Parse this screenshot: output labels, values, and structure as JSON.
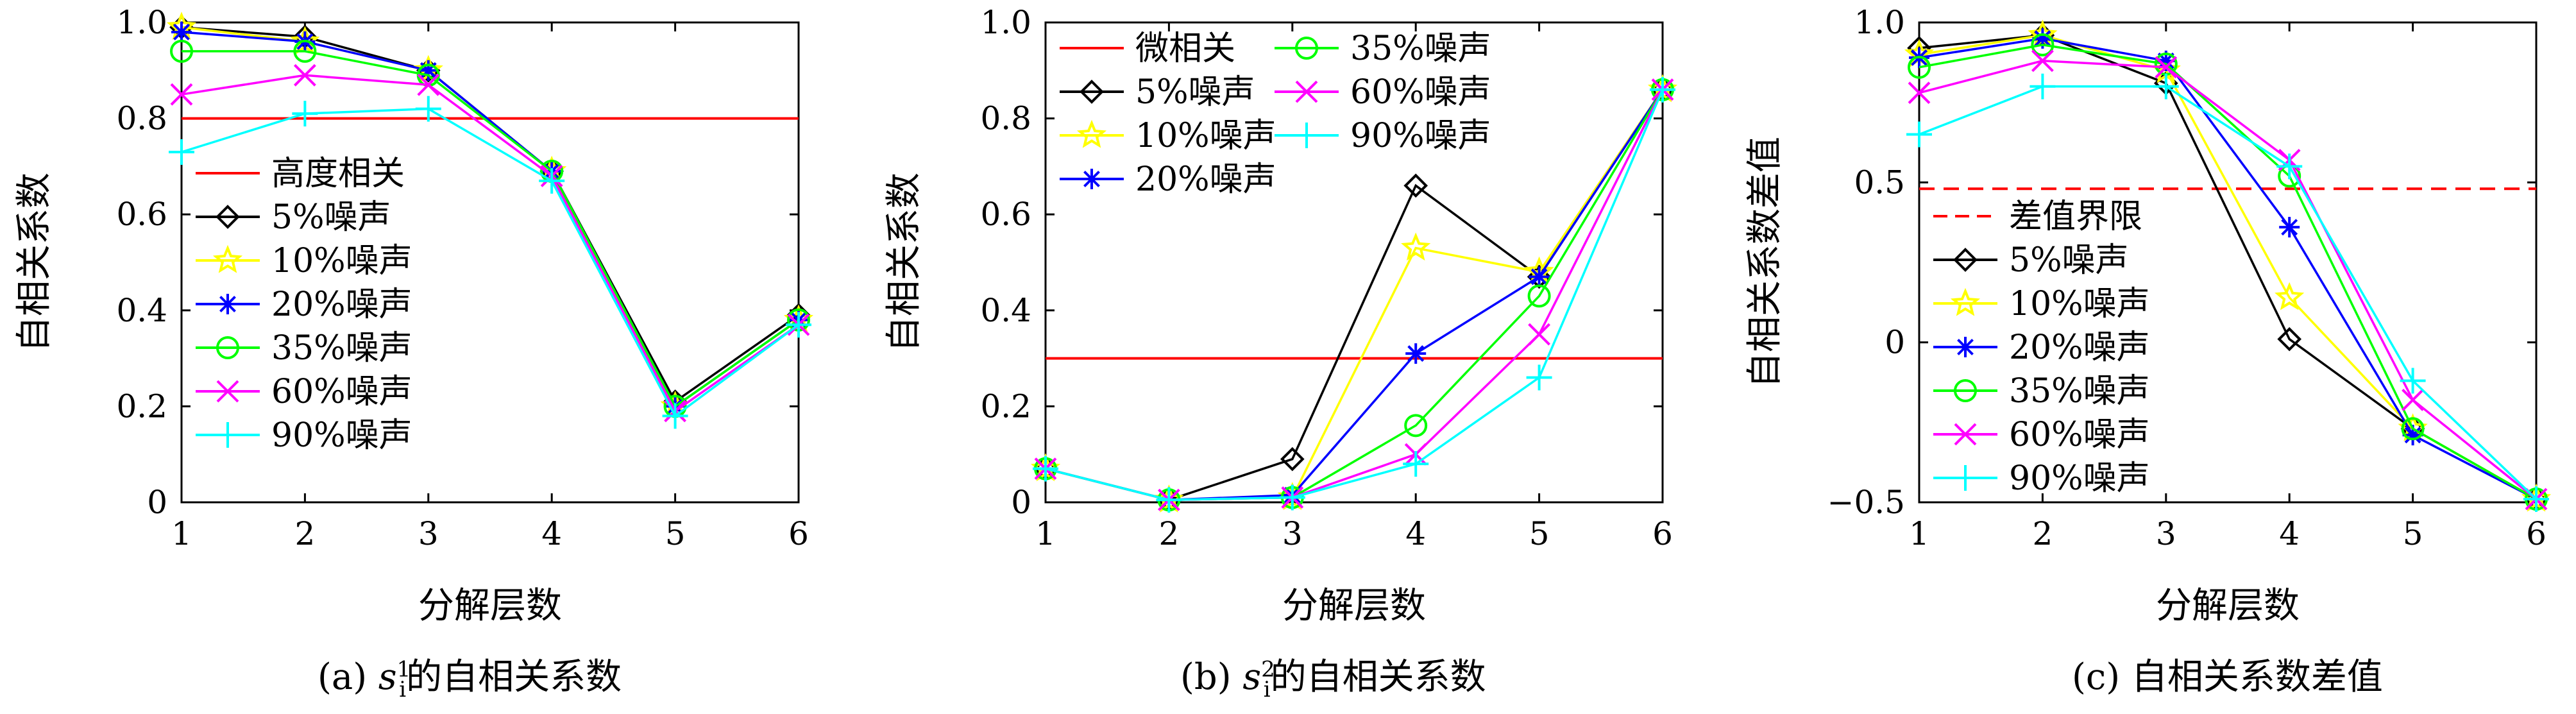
{
  "figure": {
    "captions": [
      {
        "prefix": "(a) ",
        "var": "s",
        "sub": "i",
        "sup": "1",
        "suffix": "的自相关系数"
      },
      {
        "prefix": "(b) ",
        "var": "s",
        "sub": "i",
        "sup": "2",
        "suffix": "的自相关系数"
      },
      {
        "text": "(c) 自相关系数差值"
      }
    ]
  },
  "chart_data": [
    {
      "type": "line",
      "title": "",
      "xlabel": "分解层数",
      "ylabel": "自相关系数",
      "x": [
        1,
        2,
        3,
        4,
        5,
        6
      ],
      "xlim": [
        1,
        6
      ],
      "ylim": [
        0,
        1
      ],
      "xticks": [
        "1",
        "2",
        "3",
        "4",
        "5",
        "6"
      ],
      "yticks": [
        {
          "v": 0,
          "t": "0"
        },
        {
          "v": 0.2,
          "t": "0.2"
        },
        {
          "v": 0.4,
          "t": "0.4"
        },
        {
          "v": 0.6,
          "t": "0.6"
        },
        {
          "v": 0.8,
          "t": "0.8"
        },
        {
          "v": 1,
          "t": "1.0"
        }
      ],
      "threshold": {
        "name": "高度相关",
        "value": 0.8,
        "color": "#ff0000",
        "style": "solid"
      },
      "legend_position": "center-left",
      "legend_columns": 1,
      "series": [
        {
          "name": "5%噪声",
          "color": "#000000",
          "marker": "diamond",
          "values": [
            0.99,
            0.97,
            0.9,
            0.69,
            0.21,
            0.39
          ]
        },
        {
          "name": "10%噪声",
          "color": "#ffff00",
          "marker": "star",
          "values": [
            0.99,
            0.96,
            0.9,
            0.69,
            0.2,
            0.38
          ]
        },
        {
          "name": "20%噪声",
          "color": "#0000ff",
          "marker": "asterisk",
          "values": [
            0.98,
            0.96,
            0.9,
            0.69,
            0.2,
            0.38
          ]
        },
        {
          "name": "35%噪声",
          "color": "#00ff00",
          "marker": "circle",
          "values": [
            0.94,
            0.94,
            0.89,
            0.69,
            0.2,
            0.38
          ]
        },
        {
          "name": "60%噪声",
          "color": "#ff00ff",
          "marker": "x",
          "values": [
            0.85,
            0.89,
            0.87,
            0.68,
            0.19,
            0.37
          ]
        },
        {
          "name": "90%噪声",
          "color": "#00ffff",
          "marker": "plus",
          "values": [
            0.73,
            0.81,
            0.82,
            0.67,
            0.18,
            0.37
          ]
        }
      ]
    },
    {
      "type": "line",
      "title": "",
      "xlabel": "分解层数",
      "ylabel": "自相关系数",
      "x": [
        1,
        2,
        3,
        4,
        5,
        6
      ],
      "xlim": [
        1,
        6
      ],
      "ylim": [
        0,
        1
      ],
      "xticks": [
        "1",
        "2",
        "3",
        "4",
        "5",
        "6"
      ],
      "yticks": [
        {
          "v": 0,
          "t": "0"
        },
        {
          "v": 0.2,
          "t": "0.2"
        },
        {
          "v": 0.4,
          "t": "0.4"
        },
        {
          "v": 0.6,
          "t": "0.6"
        },
        {
          "v": 0.8,
          "t": "0.8"
        },
        {
          "v": 1,
          "t": "1.0"
        }
      ],
      "threshold": {
        "name": "微相关",
        "value": 0.3,
        "color": "#ff0000",
        "style": "solid"
      },
      "legend_position": "top",
      "legend_columns": 2,
      "series": [
        {
          "name": "5%噪声",
          "color": "#000000",
          "marker": "diamond",
          "values": [
            0.07,
            0.005,
            0.09,
            0.66,
            0.47,
            0.86
          ]
        },
        {
          "name": "10%噪声",
          "color": "#ffff00",
          "marker": "star",
          "values": [
            0.07,
            0.005,
            0.01,
            0.53,
            0.48,
            0.86
          ]
        },
        {
          "name": "20%噪声",
          "color": "#0000ff",
          "marker": "asterisk",
          "values": [
            0.07,
            0.005,
            0.015,
            0.31,
            0.47,
            0.86
          ]
        },
        {
          "name": "35%噪声",
          "color": "#00ff00",
          "marker": "circle",
          "values": [
            0.07,
            0.005,
            0.01,
            0.16,
            0.43,
            0.86
          ]
        },
        {
          "name": "60%噪声",
          "color": "#ff00ff",
          "marker": "x",
          "values": [
            0.07,
            0.005,
            0.01,
            0.1,
            0.35,
            0.86
          ]
        },
        {
          "name": "90%噪声",
          "color": "#00ffff",
          "marker": "plus",
          "values": [
            0.07,
            0.005,
            0.01,
            0.08,
            0.26,
            0.86
          ]
        }
      ]
    },
    {
      "type": "line",
      "title": "",
      "xlabel": "分解层数",
      "ylabel": "自相关系数差值",
      "x": [
        1,
        2,
        3,
        4,
        5,
        6
      ],
      "xlim": [
        1,
        6
      ],
      "ylim": [
        -0.5,
        1
      ],
      "xticks": [
        "1",
        "2",
        "3",
        "4",
        "5",
        "6"
      ],
      "yticks": [
        {
          "v": -0.5,
          "t": "−0.5"
        },
        {
          "v": 0,
          "t": "0"
        },
        {
          "v": 0.5,
          "t": "0.5"
        },
        {
          "v": 1,
          "t": "1.0"
        }
      ],
      "threshold": {
        "name": "差值界限",
        "value": 0.48,
        "color": "#ff0000",
        "style": "dashed"
      },
      "legend_position": "center-left",
      "legend_columns": 1,
      "series": [
        {
          "name": "5%噪声",
          "color": "#000000",
          "marker": "diamond",
          "values": [
            0.92,
            0.96,
            0.81,
            0.01,
            -0.27,
            -0.49
          ]
        },
        {
          "name": "10%噪声",
          "color": "#ffff00",
          "marker": "star",
          "values": [
            0.9,
            0.96,
            0.85,
            0.14,
            -0.27,
            -0.49
          ]
        },
        {
          "name": "20%噪声",
          "color": "#0000ff",
          "marker": "asterisk",
          "values": [
            0.89,
            0.95,
            0.88,
            0.36,
            -0.29,
            -0.49
          ]
        },
        {
          "name": "35%噪声",
          "color": "#00ff00",
          "marker": "circle",
          "values": [
            0.86,
            0.93,
            0.87,
            0.52,
            -0.27,
            -0.49
          ]
        },
        {
          "name": "60%噪声",
          "color": "#ff00ff",
          "marker": "x",
          "values": [
            0.78,
            0.88,
            0.86,
            0.57,
            -0.18,
            -0.49
          ]
        },
        {
          "name": "90%噪声",
          "color": "#00ffff",
          "marker": "plus",
          "values": [
            0.65,
            0.8,
            0.8,
            0.55,
            -0.12,
            -0.49
          ]
        }
      ]
    }
  ]
}
